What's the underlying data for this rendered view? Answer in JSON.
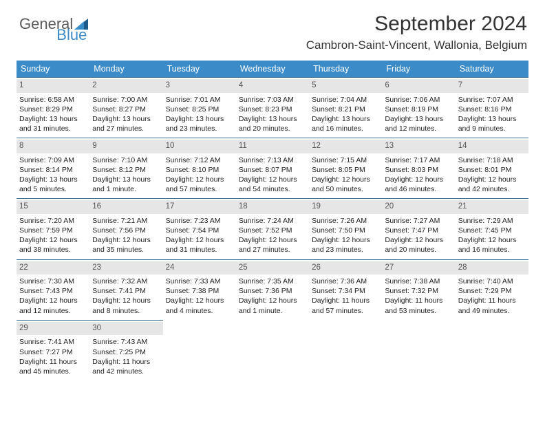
{
  "logo": {
    "general": "General",
    "blue": "Blue"
  },
  "header": {
    "month_title": "September 2024",
    "location": "Cambron-Saint-Vincent, Wallonia, Belgium"
  },
  "colors": {
    "header_bg": "#3b8bc9",
    "header_text": "#ffffff",
    "daynum_bg": "#e6e6e6",
    "daynum_text": "#555555",
    "cell_border": "#3b6a8f",
    "body_text": "#222222",
    "logo_gray": "#5a5a5a",
    "logo_blue": "#3b8bc9"
  },
  "dow": [
    "Sunday",
    "Monday",
    "Tuesday",
    "Wednesday",
    "Thursday",
    "Friday",
    "Saturday"
  ],
  "weeks": [
    [
      {
        "n": "1",
        "sr": "Sunrise: 6:58 AM",
        "ss": "Sunset: 8:29 PM",
        "d1": "Daylight: 13 hours",
        "d2": "and 31 minutes."
      },
      {
        "n": "2",
        "sr": "Sunrise: 7:00 AM",
        "ss": "Sunset: 8:27 PM",
        "d1": "Daylight: 13 hours",
        "d2": "and 27 minutes."
      },
      {
        "n": "3",
        "sr": "Sunrise: 7:01 AM",
        "ss": "Sunset: 8:25 PM",
        "d1": "Daylight: 13 hours",
        "d2": "and 23 minutes."
      },
      {
        "n": "4",
        "sr": "Sunrise: 7:03 AM",
        "ss": "Sunset: 8:23 PM",
        "d1": "Daylight: 13 hours",
        "d2": "and 20 minutes."
      },
      {
        "n": "5",
        "sr": "Sunrise: 7:04 AM",
        "ss": "Sunset: 8:21 PM",
        "d1": "Daylight: 13 hours",
        "d2": "and 16 minutes."
      },
      {
        "n": "6",
        "sr": "Sunrise: 7:06 AM",
        "ss": "Sunset: 8:19 PM",
        "d1": "Daylight: 13 hours",
        "d2": "and 12 minutes."
      },
      {
        "n": "7",
        "sr": "Sunrise: 7:07 AM",
        "ss": "Sunset: 8:16 PM",
        "d1": "Daylight: 13 hours",
        "d2": "and 9 minutes."
      }
    ],
    [
      {
        "n": "8",
        "sr": "Sunrise: 7:09 AM",
        "ss": "Sunset: 8:14 PM",
        "d1": "Daylight: 13 hours",
        "d2": "and 5 minutes."
      },
      {
        "n": "9",
        "sr": "Sunrise: 7:10 AM",
        "ss": "Sunset: 8:12 PM",
        "d1": "Daylight: 13 hours",
        "d2": "and 1 minute."
      },
      {
        "n": "10",
        "sr": "Sunrise: 7:12 AM",
        "ss": "Sunset: 8:10 PM",
        "d1": "Daylight: 12 hours",
        "d2": "and 57 minutes."
      },
      {
        "n": "11",
        "sr": "Sunrise: 7:13 AM",
        "ss": "Sunset: 8:07 PM",
        "d1": "Daylight: 12 hours",
        "d2": "and 54 minutes."
      },
      {
        "n": "12",
        "sr": "Sunrise: 7:15 AM",
        "ss": "Sunset: 8:05 PM",
        "d1": "Daylight: 12 hours",
        "d2": "and 50 minutes."
      },
      {
        "n": "13",
        "sr": "Sunrise: 7:17 AM",
        "ss": "Sunset: 8:03 PM",
        "d1": "Daylight: 12 hours",
        "d2": "and 46 minutes."
      },
      {
        "n": "14",
        "sr": "Sunrise: 7:18 AM",
        "ss": "Sunset: 8:01 PM",
        "d1": "Daylight: 12 hours",
        "d2": "and 42 minutes."
      }
    ],
    [
      {
        "n": "15",
        "sr": "Sunrise: 7:20 AM",
        "ss": "Sunset: 7:59 PM",
        "d1": "Daylight: 12 hours",
        "d2": "and 38 minutes."
      },
      {
        "n": "16",
        "sr": "Sunrise: 7:21 AM",
        "ss": "Sunset: 7:56 PM",
        "d1": "Daylight: 12 hours",
        "d2": "and 35 minutes."
      },
      {
        "n": "17",
        "sr": "Sunrise: 7:23 AM",
        "ss": "Sunset: 7:54 PM",
        "d1": "Daylight: 12 hours",
        "d2": "and 31 minutes."
      },
      {
        "n": "18",
        "sr": "Sunrise: 7:24 AM",
        "ss": "Sunset: 7:52 PM",
        "d1": "Daylight: 12 hours",
        "d2": "and 27 minutes."
      },
      {
        "n": "19",
        "sr": "Sunrise: 7:26 AM",
        "ss": "Sunset: 7:50 PM",
        "d1": "Daylight: 12 hours",
        "d2": "and 23 minutes."
      },
      {
        "n": "20",
        "sr": "Sunrise: 7:27 AM",
        "ss": "Sunset: 7:47 PM",
        "d1": "Daylight: 12 hours",
        "d2": "and 20 minutes."
      },
      {
        "n": "21",
        "sr": "Sunrise: 7:29 AM",
        "ss": "Sunset: 7:45 PM",
        "d1": "Daylight: 12 hours",
        "d2": "and 16 minutes."
      }
    ],
    [
      {
        "n": "22",
        "sr": "Sunrise: 7:30 AM",
        "ss": "Sunset: 7:43 PM",
        "d1": "Daylight: 12 hours",
        "d2": "and 12 minutes."
      },
      {
        "n": "23",
        "sr": "Sunrise: 7:32 AM",
        "ss": "Sunset: 7:41 PM",
        "d1": "Daylight: 12 hours",
        "d2": "and 8 minutes."
      },
      {
        "n": "24",
        "sr": "Sunrise: 7:33 AM",
        "ss": "Sunset: 7:38 PM",
        "d1": "Daylight: 12 hours",
        "d2": "and 4 minutes."
      },
      {
        "n": "25",
        "sr": "Sunrise: 7:35 AM",
        "ss": "Sunset: 7:36 PM",
        "d1": "Daylight: 12 hours",
        "d2": "and 1 minute."
      },
      {
        "n": "26",
        "sr": "Sunrise: 7:36 AM",
        "ss": "Sunset: 7:34 PM",
        "d1": "Daylight: 11 hours",
        "d2": "and 57 minutes."
      },
      {
        "n": "27",
        "sr": "Sunrise: 7:38 AM",
        "ss": "Sunset: 7:32 PM",
        "d1": "Daylight: 11 hours",
        "d2": "and 53 minutes."
      },
      {
        "n": "28",
        "sr": "Sunrise: 7:40 AM",
        "ss": "Sunset: 7:29 PM",
        "d1": "Daylight: 11 hours",
        "d2": "and 49 minutes."
      }
    ],
    [
      {
        "n": "29",
        "sr": "Sunrise: 7:41 AM",
        "ss": "Sunset: 7:27 PM",
        "d1": "Daylight: 11 hours",
        "d2": "and 45 minutes."
      },
      {
        "n": "30",
        "sr": "Sunrise: 7:43 AM",
        "ss": "Sunset: 7:25 PM",
        "d1": "Daylight: 11 hours",
        "d2": "and 42 minutes."
      },
      null,
      null,
      null,
      null,
      null
    ]
  ]
}
